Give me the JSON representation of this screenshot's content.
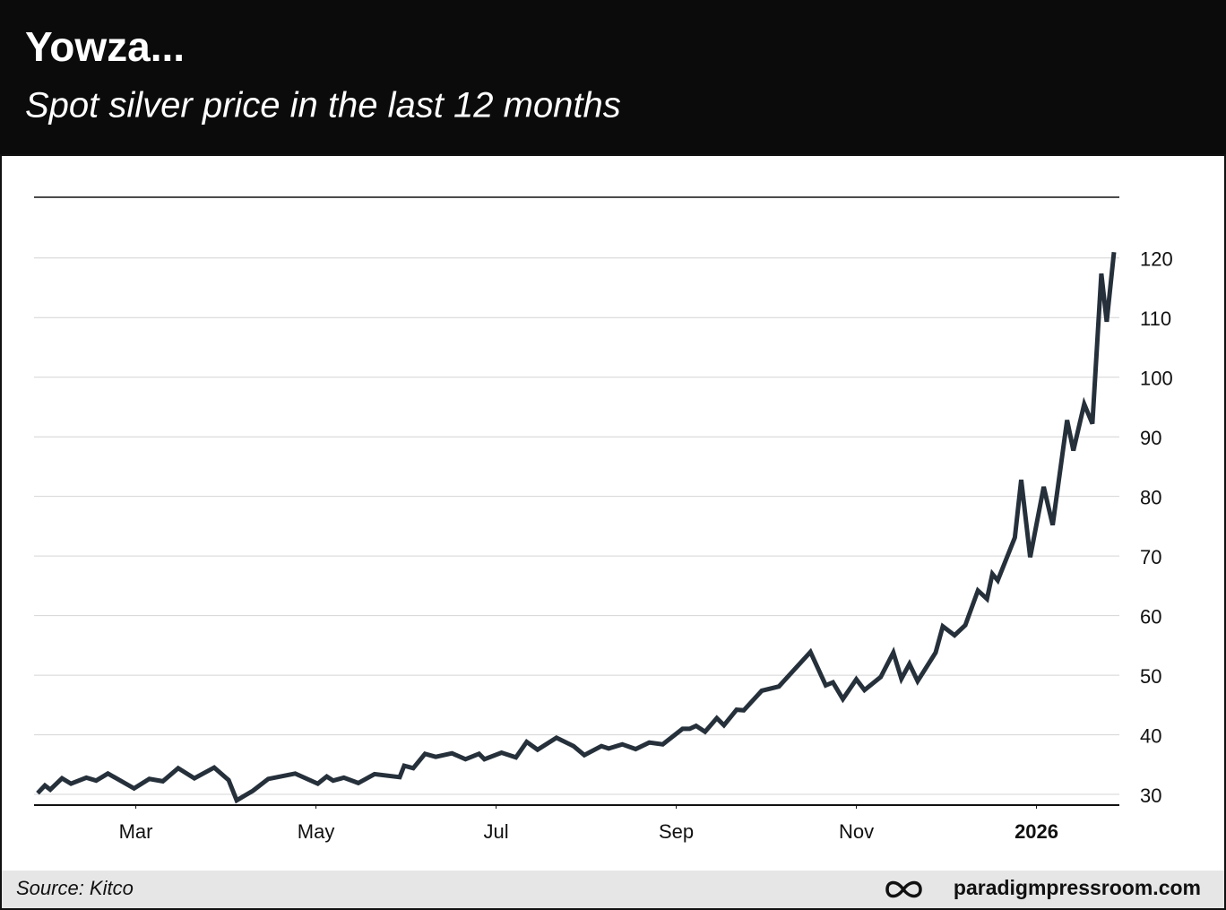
{
  "chart_data": {
    "type": "line",
    "title": "Yowza...",
    "subtitle": "Spot silver price in the last 12 months",
    "source": "Source: Kitco",
    "website": "paradigmpressroom.com",
    "color": "#25303b",
    "grid": true,
    "xlim": [
      0.87,
      12.92
    ],
    "ylim": [
      28.2,
      130.2
    ],
    "xticks": [
      {
        "value": 2,
        "label": "Mar"
      },
      {
        "value": 4,
        "label": "May"
      },
      {
        "value": 6,
        "label": "Jul"
      },
      {
        "value": 8,
        "label": "Sep"
      },
      {
        "value": 10,
        "label": "Nov"
      },
      {
        "value": 12,
        "label": "2026"
      }
    ],
    "yticks": [
      30,
      40,
      50,
      60,
      70,
      80,
      90,
      100,
      110,
      120
    ],
    "x": [
      0.91,
      0.99,
      1.05,
      1.18,
      1.28,
      1.45,
      1.56,
      1.69,
      1.98,
      2.15,
      2.3,
      2.47,
      2.65,
      2.87,
      3.03,
      3.12,
      3.3,
      3.47,
      3.77,
      4.02,
      4.12,
      4.19,
      4.31,
      4.47,
      4.65,
      4.93,
      4.98,
      5.08,
      5.21,
      5.33,
      5.51,
      5.66,
      5.81,
      5.87,
      6.06,
      6.22,
      6.34,
      6.46,
      6.67,
      6.86,
      6.98,
      7.17,
      7.25,
      7.4,
      7.55,
      7.7,
      7.85,
      8.07,
      8.15,
      8.22,
      8.32,
      8.45,
      8.53,
      8.67,
      8.75,
      8.95,
      9.14,
      9.49,
      9.66,
      9.74,
      9.85,
      10.0,
      10.09,
      10.27,
      10.41,
      10.5,
      10.59,
      10.68,
      10.88,
      10.96,
      11.09,
      11.21,
      11.35,
      11.45,
      11.51,
      11.57,
      11.76,
      11.83,
      11.93,
      12.08,
      12.18,
      12.34,
      12.41,
      12.53,
      12.62,
      12.72,
      12.78,
      12.86
    ],
    "values": [
      30.2,
      31.5,
      30.8,
      32.7,
      31.8,
      32.8,
      32.3,
      33.5,
      31.0,
      32.6,
      32.2,
      34.4,
      32.7,
      34.5,
      32.4,
      29.0,
      30.6,
      32.6,
      33.5,
      31.8,
      33.0,
      32.3,
      32.8,
      31.9,
      33.4,
      32.9,
      34.8,
      34.4,
      36.8,
      36.3,
      36.9,
      35.9,
      36.8,
      35.9,
      37.0,
      36.2,
      38.8,
      37.5,
      39.5,
      38.1,
      36.6,
      38.1,
      37.7,
      38.4,
      37.6,
      38.7,
      38.4,
      41.0,
      41.0,
      41.5,
      40.5,
      42.8,
      41.6,
      44.2,
      44.1,
      47.4,
      48.1,
      53.9,
      48.3,
      48.8,
      46.0,
      49.3,
      47.5,
      49.7,
      53.8,
      49.4,
      51.9,
      49.0,
      53.8,
      58.2,
      56.7,
      58.4,
      64.2,
      62.8,
      67.0,
      65.9,
      73.1,
      82.8,
      69.8,
      81.6,
      75.2,
      92.8,
      87.7,
      95.5,
      92.2,
      117.4,
      109.3,
      121.0
    ]
  }
}
